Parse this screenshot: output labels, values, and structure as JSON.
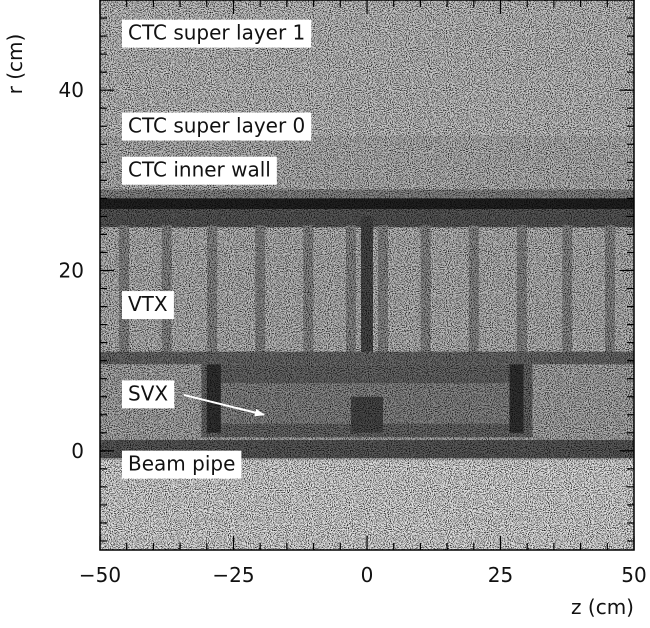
{
  "chart_data": {
    "type": "heatmap",
    "title": "",
    "xlabel": "z (cm)",
    "ylabel": "r (cm)",
    "xlim": [
      -50,
      50
    ],
    "ylim": [
      -11,
      50
    ],
    "x_ticks": [
      {
        "value": -50,
        "label": "−50"
      },
      {
        "value": -25,
        "label": "−25"
      },
      {
        "value": 0,
        "label": "0"
      },
      {
        "value": 25,
        "label": "25"
      },
      {
        "value": 50,
        "label": "50"
      }
    ],
    "y_ticks": [
      {
        "value": 0,
        "label": "0"
      },
      {
        "value": 20,
        "label": "20"
      },
      {
        "value": 40,
        "label": "40"
      }
    ],
    "grid": false,
    "colormap": "grayscale",
    "annotations": [
      {
        "text": "CTC super layer 1",
        "z": -50,
        "r": 45.6
      },
      {
        "text": "CTC super layer 0",
        "z": -50,
        "r": 35.3
      },
      {
        "text": "CTC inner wall",
        "z": -50,
        "r": 30.4
      },
      {
        "text": "VTX",
        "z": -50,
        "r": 15.5
      },
      {
        "text": "SVX",
        "z": -50,
        "r": 5.6
      },
      {
        "text": "Beam pipe",
        "z": -50,
        "r": -2.2
      }
    ],
    "arrow": {
      "from": {
        "z": -34.3,
        "r": 6.2
      },
      "to": {
        "z": -19.3,
        "r": 4.0
      }
    },
    "structures": [
      {
        "name": "CTC inner wall",
        "z_range": [
          -50,
          50
        ],
        "r_range": [
          27,
          28
        ]
      },
      {
        "name": "VTX",
        "z_range": [
          -50,
          50
        ],
        "r_range": [
          10,
          25
        ]
      },
      {
        "name": "SVX",
        "z_range": [
          -30,
          30
        ],
        "r_range": [
          2,
          9
        ]
      },
      {
        "name": "Beam pipe",
        "z_range": [
          -50,
          50
        ],
        "r_range": [
          0,
          1
        ]
      }
    ]
  }
}
